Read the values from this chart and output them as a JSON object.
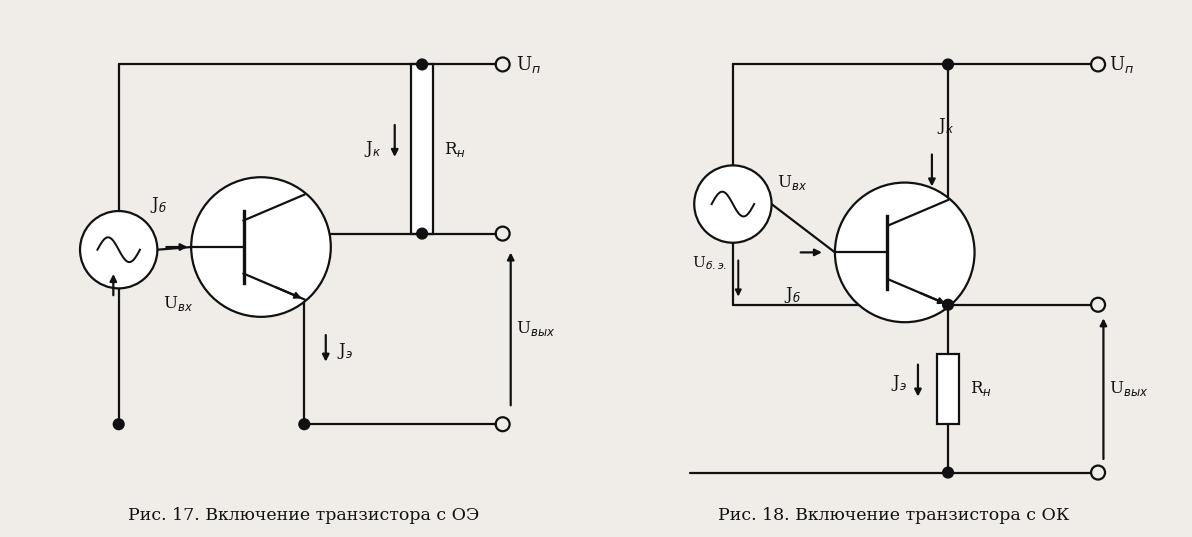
{
  "bg_color": "#f0ede8",
  "line_color": "#111111",
  "lw": 1.6,
  "caption1": "Рис. 17. Включение транзистора с ОЭ",
  "caption2": "Рис. 18. Включение транзистора с ОК",
  "cap_fs": 12.5,
  "lbl_fs": 12
}
